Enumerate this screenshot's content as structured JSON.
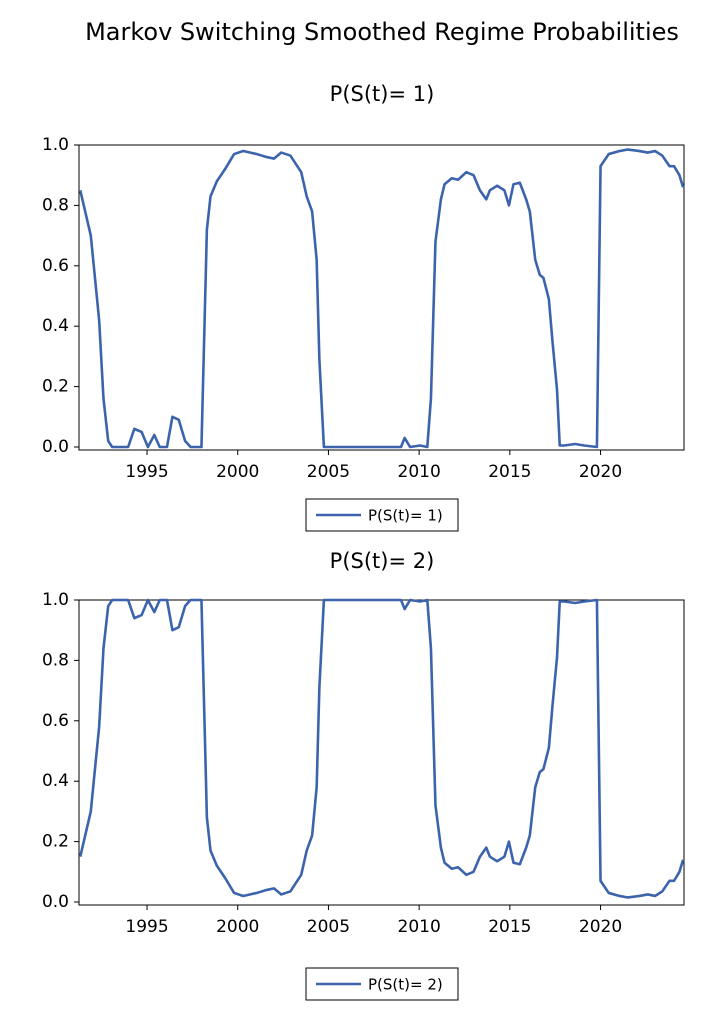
{
  "title": "Markov Switching Smoothed Regime Probabilities",
  "chart_data": [
    {
      "type": "line",
      "title": "P(S(t)= 1)",
      "xlim": [
        1991.25,
        2024.6
      ],
      "ylim": [
        0,
        1
      ],
      "xticks": [
        1995,
        2000,
        2005,
        2010,
        2015,
        2020
      ],
      "yticks": [
        {
          "value": 0,
          "label": "0.0"
        },
        0.2,
        0.4,
        0.6,
        0.8,
        {
          "value": 1,
          "label": "1.0"
        }
      ],
      "x": [
        1991.32,
        1991.9,
        1992.36,
        1992.6,
        1992.86,
        1993.08,
        1993.96,
        1994.3,
        1994.7,
        1995.05,
        1995.4,
        1995.7,
        1996.1,
        1996.4,
        1996.75,
        1997.1,
        1997.4,
        1998.0,
        1998.3,
        1998.5,
        1998.85,
        1999.3,
        1999.8,
        2000.3,
        2001.05,
        2001.6,
        2002.0,
        2002.4,
        2002.9,
        2003.5,
        2003.8,
        2004.1,
        2004.35,
        2004.5,
        2004.75,
        2005.95,
        2009.0,
        2009.2,
        2009.5,
        2010.05,
        2010.45,
        2010.65,
        2010.9,
        2011.2,
        2011.4,
        2011.8,
        2012.15,
        2012.6,
        2013.0,
        2013.35,
        2013.7,
        2013.9,
        2014.3,
        2014.7,
        2014.95,
        2015.2,
        2015.55,
        2015.9,
        2016.1,
        2016.4,
        2016.65,
        2016.85,
        2017.15,
        2017.35,
        2017.6,
        2017.75,
        2018.0,
        2018.6,
        2019.1,
        2019.8,
        2020.0,
        2020.45,
        2021.05,
        2021.5,
        2022.15,
        2022.6,
        2023.0,
        2023.4,
        2023.8,
        2024.05,
        2024.35,
        2024.55
      ],
      "series": [
        {
          "name": "P(S(t)= 1)",
          "color": "#3b64ad",
          "values": [
            0.85,
            0.7,
            0.42,
            0.16,
            0.02,
            0,
            0,
            0.06,
            0.05,
            0,
            0.04,
            0,
            0,
            0.1,
            0.09,
            0.02,
            0,
            0,
            0.72,
            0.83,
            0.88,
            0.92,
            0.97,
            0.98,
            0.97,
            0.96,
            0.955,
            0.975,
            0.965,
            0.91,
            0.83,
            0.78,
            0.62,
            0.29,
            0,
            0,
            0,
            0.03,
            0,
            0.005,
            0,
            0.16,
            0.68,
            0.82,
            0.87,
            0.89,
            0.885,
            0.91,
            0.9,
            0.85,
            0.82,
            0.85,
            0.865,
            0.85,
            0.8,
            0.87,
            0.875,
            0.82,
            0.78,
            0.62,
            0.57,
            0.56,
            0.49,
            0.35,
            0.19,
            0.005,
            0.005,
            0.01,
            0.005,
            0,
            0.93,
            0.97,
            0.98,
            0.985,
            0.98,
            0.975,
            0.98,
            0.965,
            0.93,
            0.93,
            0.9,
            0.86
          ]
        }
      ]
    },
    {
      "type": "line",
      "title": "P(S(t)= 2)",
      "xlim": [
        1991.25,
        2024.6
      ],
      "ylim": [
        0,
        1
      ],
      "xticks": [
        1995,
        2000,
        2005,
        2010,
        2015,
        2020
      ],
      "yticks": [
        {
          "value": 0,
          "label": "0.0"
        },
        0.2,
        0.4,
        0.6,
        0.8,
        {
          "value": 1,
          "label": "1.0"
        }
      ],
      "x": [
        1991.32,
        1991.9,
        1992.36,
        1992.6,
        1992.86,
        1993.08,
        1993.96,
        1994.3,
        1994.7,
        1995.05,
        1995.4,
        1995.7,
        1996.1,
        1996.4,
        1996.75,
        1997.1,
        1997.4,
        1998.0,
        1998.3,
        1998.5,
        1998.85,
        1999.3,
        1999.8,
        2000.3,
        2001.05,
        2001.6,
        2002.0,
        2002.4,
        2002.9,
        2003.5,
        2003.8,
        2004.1,
        2004.35,
        2004.5,
        2004.75,
        2005.95,
        2009.0,
        2009.2,
        2009.5,
        2010.05,
        2010.45,
        2010.65,
        2010.9,
        2011.2,
        2011.4,
        2011.8,
        2012.15,
        2012.6,
        2013.0,
        2013.35,
        2013.7,
        2013.9,
        2014.3,
        2014.7,
        2014.95,
        2015.2,
        2015.55,
        2015.9,
        2016.1,
        2016.4,
        2016.65,
        2016.85,
        2017.15,
        2017.35,
        2017.6,
        2017.75,
        2018.0,
        2018.6,
        2019.1,
        2019.8,
        2020.0,
        2020.45,
        2021.05,
        2021.5,
        2022.15,
        2022.6,
        2023.0,
        2023.4,
        2023.8,
        2024.05,
        2024.35,
        2024.55
      ],
      "series": [
        {
          "name": "P(S(t)= 2)",
          "color": "#3b64ad",
          "values": [
            0.15,
            0.3,
            0.58,
            0.84,
            0.98,
            1,
            1,
            0.94,
            0.95,
            1,
            0.96,
            1,
            1,
            0.9,
            0.91,
            0.98,
            1,
            1,
            0.28,
            0.17,
            0.12,
            0.08,
            0.03,
            0.02,
            0.03,
            0.04,
            0.045,
            0.025,
            0.035,
            0.09,
            0.17,
            0.22,
            0.38,
            0.71,
            1,
            1,
            1,
            0.97,
            1,
            0.995,
            1,
            0.84,
            0.32,
            0.18,
            0.13,
            0.11,
            0.115,
            0.09,
            0.1,
            0.15,
            0.18,
            0.15,
            0.135,
            0.15,
            0.2,
            0.13,
            0.125,
            0.18,
            0.22,
            0.38,
            0.43,
            0.44,
            0.51,
            0.65,
            0.81,
            0.995,
            0.995,
            0.99,
            0.995,
            1,
            0.07,
            0.03,
            0.02,
            0.015,
            0.02,
            0.025,
            0.02,
            0.035,
            0.07,
            0.07,
            0.1,
            0.14
          ]
        }
      ]
    }
  ]
}
